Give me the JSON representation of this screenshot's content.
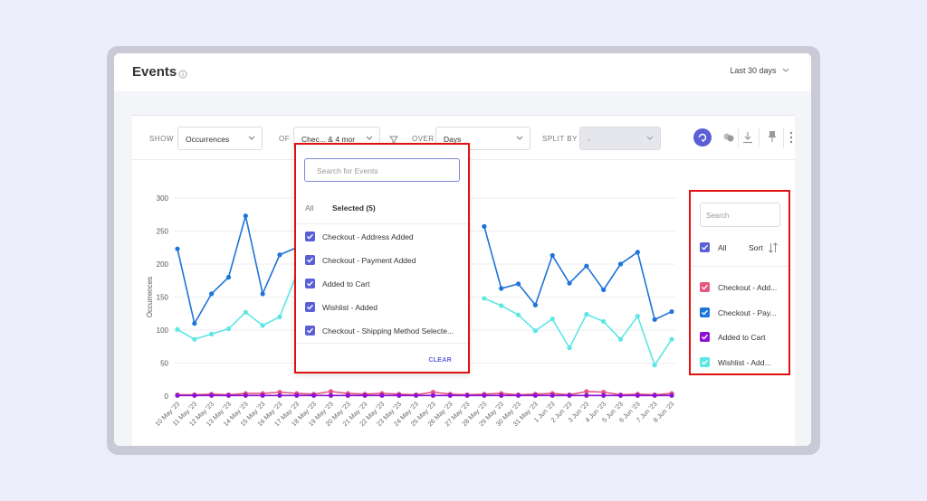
{
  "header": {
    "title": "Events",
    "date_range": "Last 30 days"
  },
  "toolbar": {
    "show_label": "SHOW",
    "show_value": "Occurrences",
    "of_label": "OF",
    "of_value": "Chec... & 4 mor",
    "over_label": "OVER",
    "over_value": "Days",
    "split_label": "SPLIT BY",
    "split_value": "-"
  },
  "event_dropdown": {
    "search_placeholder": "Search for Events",
    "tab_all": "All",
    "tab_selected": "Selected (5)",
    "items": [
      {
        "label": "Checkout - Address Added",
        "checked": true
      },
      {
        "label": "Checkout - Payment Added",
        "checked": true
      },
      {
        "label": "Added to Cart",
        "checked": true
      },
      {
        "label": "Wishlist - Added",
        "checked": true
      },
      {
        "label": "Checkout - Shipping Method Selecte...",
        "checked": true
      }
    ],
    "clear_label": "CLEAR"
  },
  "legend": {
    "search_placeholder": "Search",
    "all_label": "All",
    "sort_label": "Sort",
    "items": [
      {
        "label": "Checkout - Add...",
        "color": "#e4577f"
      },
      {
        "label": "Checkout - Pay...",
        "color": "#1d74d9"
      },
      {
        "label": "Added to Cart",
        "color": "#8d12d6"
      },
      {
        "label": "Wishlist - Add...",
        "color": "#5de6e6"
      }
    ]
  },
  "colors": {
    "accent": "#5b5fd6",
    "highlight_border": "#e01010"
  },
  "chart_data": {
    "type": "line",
    "ylabel": "Occurrences",
    "ylim": [
      0,
      300
    ],
    "yticks": [
      0,
      50,
      100,
      150,
      200,
      250,
      300
    ],
    "x": [
      "10 May '23",
      "11 May '23",
      "12 May '23",
      "13 May '23",
      "14 May '23",
      "15 May '23",
      "16 May '23",
      "17 May '23",
      "18 May '23",
      "19 May '23",
      "20 May '23",
      "21 May '23",
      "22 May '23",
      "23 May '23",
      "24 May '23",
      "25 May '23",
      "26 May '23",
      "27 May '23",
      "28 May '23",
      "29 May '23",
      "30 May '23",
      "31 May '23",
      "1 Jun '23",
      "2 Jun '23",
      "3 Jun '23",
      "4 Jun '23",
      "5 Jun '23",
      "6 Jun '23",
      "7 Jun '23",
      "8 Jun '23"
    ],
    "series": [
      {
        "name": "Checkout - Pay...",
        "color": "#1d74d9",
        "values": [
          223,
          110,
          155,
          180,
          273,
          155,
          214,
          225,
          null,
          null,
          null,
          null,
          null,
          null,
          null,
          null,
          null,
          null,
          257,
          163,
          170,
          138,
          213,
          171,
          197,
          161,
          200,
          218,
          116,
          128
        ]
      },
      {
        "name": "Wishlist - Add...",
        "color": "#5de6e6",
        "values": [
          101,
          86,
          94,
          102,
          127,
          107,
          120,
          185,
          null,
          null,
          null,
          null,
          null,
          null,
          null,
          null,
          null,
          null,
          148,
          137,
          123,
          99,
          117,
          73,
          124,
          113,
          86,
          121,
          47,
          86
        ]
      },
      {
        "name": "Checkout - Add...",
        "color": "#e4577f",
        "values": [
          2,
          2,
          3,
          2,
          4,
          4,
          6,
          4,
          3,
          7,
          4,
          3,
          4,
          3,
          2,
          6,
          3,
          2,
          3,
          4,
          2,
          3,
          4,
          2,
          7,
          6,
          2,
          3,
          2,
          4
        ]
      },
      {
        "name": "Added to Cart",
        "color": "#8d12d6",
        "values": [
          1,
          1,
          1,
          1,
          1,
          1,
          1,
          1,
          1,
          1,
          1,
          1,
          1,
          1,
          1,
          1,
          1,
          1,
          1,
          1,
          1,
          1,
          1,
          1,
          1,
          1,
          1,
          1,
          1,
          1
        ]
      }
    ]
  }
}
